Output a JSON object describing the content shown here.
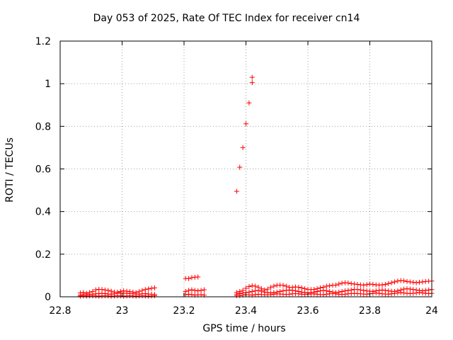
{
  "chart_data": {
    "type": "scatter",
    "title": "Day 053 of 2025, Rate Of TEC Index for receiver cn14",
    "xlabel": "GPS time / hours",
    "ylabel": "ROTI / TECUs",
    "xlim": [
      22.8,
      24
    ],
    "ylim": [
      0,
      1.2
    ],
    "xticks": [
      22.8,
      23,
      23.2,
      23.4,
      23.6,
      23.8,
      24
    ],
    "xtick_labels": [
      "22.8",
      "23",
      "23.2",
      "23.4",
      "23.6",
      "23.8",
      "24"
    ],
    "yticks": [
      0,
      0.2,
      0.4,
      0.6,
      0.8,
      1,
      1.2
    ],
    "ytick_labels": [
      "0",
      "0.2",
      "0.4",
      "0.6",
      "0.8",
      "1",
      "1.2"
    ],
    "grid": true,
    "marker": "+",
    "color": "#ff0000",
    "series": [
      {
        "x": [
          22.865,
          22.875,
          22.885,
          22.895,
          22.905,
          22.915,
          22.925,
          22.935,
          22.945,
          22.955,
          22.965,
          22.975,
          22.985,
          22.995,
          23.005,
          23.015,
          23.025,
          23.035,
          23.045,
          23.055,
          23.065,
          23.075,
          23.085,
          23.095,
          23.105
        ],
        "y": [
          0.018,
          0.02,
          0.016,
          0.02,
          0.025,
          0.033,
          0.035,
          0.034,
          0.032,
          0.03,
          0.026,
          0.022,
          0.022,
          0.025,
          0.028,
          0.026,
          0.024,
          0.022,
          0.02,
          0.024,
          0.03,
          0.034,
          0.037,
          0.04,
          0.042
        ]
      },
      {
        "x": [
          22.865,
          22.875,
          22.885,
          22.895,
          22.905,
          22.915,
          22.925,
          22.935,
          22.945,
          22.955,
          22.965,
          22.975,
          22.985,
          22.995,
          23.005,
          23.015,
          23.025,
          23.035,
          23.045,
          23.055,
          23.065,
          23.075,
          23.085,
          23.095,
          23.105
        ],
        "y": [
          0.008,
          0.01,
          0.009,
          0.011,
          0.012,
          0.014,
          0.015,
          0.016,
          0.015,
          0.013,
          0.012,
          0.014,
          0.016,
          0.018,
          0.017,
          0.016,
          0.015,
          0.014,
          0.013,
          0.012,
          0.014,
          0.015,
          0.013,
          0.012,
          0.011
        ]
      },
      {
        "x": [
          22.865,
          22.875,
          22.885,
          22.895,
          22.905,
          22.915,
          22.925,
          22.935,
          22.945,
          22.955,
          22.965,
          22.975,
          22.985,
          22.995,
          23.005,
          23.015,
          23.025,
          23.035,
          23.045,
          23.055,
          23.065,
          23.075,
          23.085,
          23.095,
          23.105
        ],
        "y": [
          0.003,
          0.004,
          0.003,
          0.004,
          0.005,
          0.004,
          0.003,
          0.004,
          0.005,
          0.004,
          0.003,
          0.004,
          0.005,
          0.004,
          0.003,
          0.004,
          0.005,
          0.004,
          0.003,
          0.004,
          0.005,
          0.004,
          0.003,
          0.004,
          0.005
        ]
      },
      {
        "x": [
          23.205,
          23.215,
          23.225,
          23.235,
          23.245
        ],
        "y": [
          0.086,
          0.085,
          0.09,
          0.092,
          0.093
        ]
      },
      {
        "x": [
          23.205,
          23.215,
          23.225,
          23.235,
          23.245,
          23.255,
          23.265
        ],
        "y": [
          0.025,
          0.03,
          0.033,
          0.03,
          0.028,
          0.03,
          0.033
        ]
      },
      {
        "x": [
          23.205,
          23.215,
          23.225,
          23.235,
          23.245,
          23.255,
          23.265
        ],
        "y": [
          0.01,
          0.012,
          0.01,
          0.008,
          0.009,
          0.01,
          0.008
        ]
      },
      {
        "x": [
          23.37,
          23.38,
          23.39,
          23.4,
          23.41,
          23.42
        ],
        "y": [
          0.495,
          0.608,
          0.7,
          0.812,
          0.91,
          1.005
        ]
      },
      {
        "x": [
          23.42
        ],
        "y": [
          1.03
        ]
      },
      {
        "x": [
          23.37,
          23.38,
          23.39,
          23.4,
          23.41,
          23.42,
          23.43,
          23.44,
          23.45,
          23.46,
          23.47,
          23.48,
          23.49,
          23.5,
          23.51,
          23.52,
          23.53,
          23.54,
          23.55,
          23.56,
          23.57,
          23.58,
          23.59,
          23.6,
          23.61,
          23.62,
          23.63,
          23.64,
          23.65,
          23.66,
          23.67,
          23.68,
          23.69,
          23.7,
          23.71,
          23.72,
          23.73,
          23.74,
          23.75,
          23.76,
          23.77,
          23.78,
          23.79,
          23.8,
          23.81,
          23.82,
          23.83,
          23.84,
          23.85,
          23.86,
          23.87,
          23.88,
          23.89,
          23.9,
          23.91,
          23.92,
          23.93,
          23.94,
          23.95,
          23.96,
          23.97,
          23.98,
          23.99,
          24.0
        ],
        "y": [
          0.02,
          0.025,
          0.03,
          0.04,
          0.048,
          0.052,
          0.05,
          0.045,
          0.038,
          0.032,
          0.036,
          0.044,
          0.05,
          0.054,
          0.055,
          0.054,
          0.05,
          0.045,
          0.044,
          0.046,
          0.045,
          0.042,
          0.038,
          0.035,
          0.034,
          0.035,
          0.038,
          0.042,
          0.045,
          0.05,
          0.052,
          0.054,
          0.055,
          0.06,
          0.064,
          0.066,
          0.065,
          0.062,
          0.06,
          0.058,
          0.056,
          0.055,
          0.057,
          0.06,
          0.058,
          0.056,
          0.055,
          0.056,
          0.058,
          0.062,
          0.066,
          0.07,
          0.074,
          0.076,
          0.075,
          0.072,
          0.07,
          0.068,
          0.066,
          0.068,
          0.07,
          0.072,
          0.073,
          0.074
        ]
      },
      {
        "x": [
          23.37,
          23.38,
          23.39,
          23.4,
          23.41,
          23.42,
          23.43,
          23.44,
          23.45,
          23.46,
          23.47,
          23.48,
          23.49,
          23.5,
          23.51,
          23.52,
          23.53,
          23.54,
          23.55,
          23.56,
          23.57,
          23.58,
          23.59,
          23.6,
          23.61,
          23.62,
          23.63,
          23.64,
          23.65,
          23.66,
          23.67,
          23.68,
          23.69,
          23.7,
          23.71,
          23.72,
          23.73,
          23.74,
          23.75,
          23.76,
          23.77,
          23.78,
          23.79,
          23.8,
          23.81,
          23.82,
          23.83,
          23.84,
          23.85,
          23.86,
          23.87,
          23.88,
          23.89,
          23.9,
          23.91,
          23.92,
          23.93,
          23.94,
          23.95,
          23.96,
          23.97,
          23.98,
          23.99,
          24.0
        ],
        "y": [
          0.012,
          0.015,
          0.018,
          0.02,
          0.022,
          0.025,
          0.028,
          0.03,
          0.026,
          0.022,
          0.02,
          0.018,
          0.02,
          0.022,
          0.025,
          0.028,
          0.03,
          0.032,
          0.03,
          0.028,
          0.025,
          0.022,
          0.02,
          0.018,
          0.02,
          0.022,
          0.025,
          0.028,
          0.03,
          0.028,
          0.025,
          0.022,
          0.02,
          0.022,
          0.025,
          0.028,
          0.03,
          0.032,
          0.035,
          0.034,
          0.032,
          0.03,
          0.028,
          0.026,
          0.025,
          0.028,
          0.03,
          0.032,
          0.03,
          0.028,
          0.026,
          0.025,
          0.028,
          0.032,
          0.036,
          0.038,
          0.036,
          0.034,
          0.032,
          0.03,
          0.028,
          0.03,
          0.032,
          0.034
        ]
      },
      {
        "x": [
          23.37,
          23.38,
          23.39,
          23.4,
          23.41,
          23.42,
          23.43,
          23.44,
          23.45,
          23.46,
          23.47,
          23.48,
          23.49,
          23.5,
          23.51,
          23.52,
          23.53,
          23.54,
          23.55,
          23.56,
          23.57,
          23.58,
          23.59,
          23.6,
          23.61,
          23.62,
          23.63,
          23.64,
          23.65,
          23.66,
          23.67,
          23.68,
          23.69,
          23.7,
          23.71,
          23.72,
          23.73,
          23.74,
          23.75,
          23.76,
          23.77,
          23.78,
          23.79,
          23.8,
          23.81,
          23.82,
          23.83,
          23.84,
          23.85,
          23.86,
          23.87,
          23.88,
          23.89,
          23.9,
          23.91,
          23.92,
          23.93,
          23.94,
          23.95,
          23.96,
          23.97,
          23.98,
          23.99,
          24.0
        ],
        "y": [
          0.005,
          0.006,
          0.008,
          0.01,
          0.009,
          0.008,
          0.01,
          0.012,
          0.011,
          0.01,
          0.009,
          0.01,
          0.012,
          0.014,
          0.013,
          0.012,
          0.011,
          0.012,
          0.014,
          0.015,
          0.014,
          0.012,
          0.011,
          0.012,
          0.013,
          0.014,
          0.012,
          0.011,
          0.01,
          0.012,
          0.014,
          0.015,
          0.014,
          0.012,
          0.011,
          0.012,
          0.014,
          0.015,
          0.016,
          0.015,
          0.014,
          0.013,
          0.012,
          0.014,
          0.016,
          0.018,
          0.016,
          0.014,
          0.013,
          0.012,
          0.014,
          0.016,
          0.018,
          0.02,
          0.018,
          0.016,
          0.015,
          0.016,
          0.018,
          0.02,
          0.018,
          0.016,
          0.015,
          0.016
        ]
      }
    ]
  }
}
